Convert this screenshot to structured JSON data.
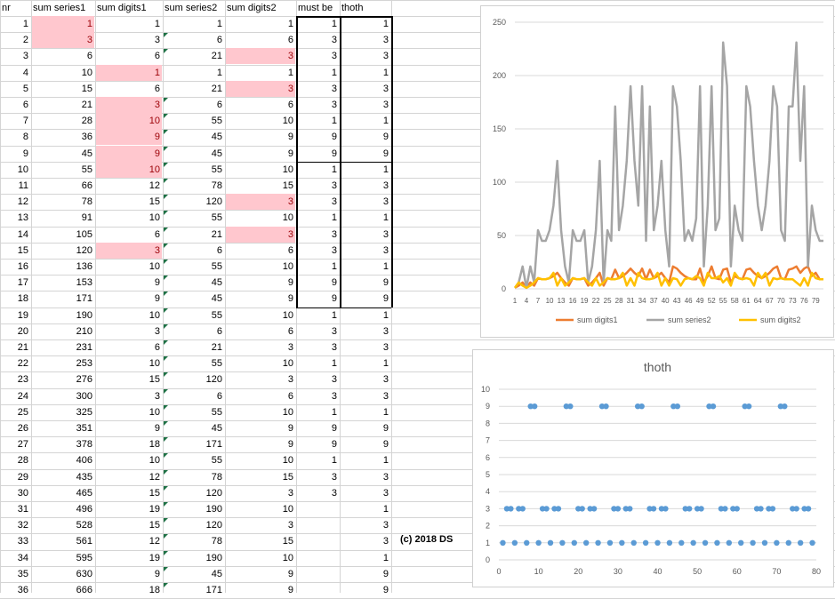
{
  "headers": [
    "nr",
    "sum series1",
    "sum digits1",
    "sum series2",
    "sum digits2",
    "must be",
    "thoth"
  ],
  "rows": [
    [
      1,
      1,
      1,
      1,
      1,
      1,
      1
    ],
    [
      2,
      3,
      3,
      6,
      6,
      3,
      3
    ],
    [
      3,
      6,
      6,
      21,
      3,
      3,
      3
    ],
    [
      4,
      10,
      1,
      1,
      1,
      1,
      1
    ],
    [
      5,
      15,
      6,
      21,
      3,
      3,
      3
    ],
    [
      6,
      21,
      3,
      6,
      6,
      3,
      3
    ],
    [
      7,
      28,
      10,
      55,
      10,
      1,
      1
    ],
    [
      8,
      36,
      9,
      45,
      9,
      9,
      9
    ],
    [
      9,
      45,
      9,
      45,
      9,
      9,
      9
    ],
    [
      10,
      55,
      10,
      55,
      10,
      1,
      1
    ],
    [
      11,
      66,
      12,
      78,
      15,
      3,
      3
    ],
    [
      12,
      78,
      15,
      120,
      3,
      3,
      3
    ],
    [
      13,
      91,
      10,
      55,
      10,
      1,
      1
    ],
    [
      14,
      105,
      6,
      21,
      3,
      3,
      3
    ],
    [
      15,
      120,
      3,
      6,
      6,
      3,
      3
    ],
    [
      16,
      136,
      10,
      55,
      10,
      1,
      1
    ],
    [
      17,
      153,
      9,
      45,
      9,
      9,
      9
    ],
    [
      18,
      171,
      9,
      45,
      9,
      9,
      9
    ],
    [
      19,
      190,
      10,
      55,
      10,
      1,
      1
    ],
    [
      20,
      210,
      3,
      6,
      6,
      3,
      3
    ],
    [
      21,
      231,
      6,
      21,
      3,
      3,
      3
    ],
    [
      22,
      253,
      10,
      55,
      10,
      1,
      1
    ],
    [
      23,
      276,
      15,
      120,
      3,
      3,
      3
    ],
    [
      24,
      300,
      3,
      6,
      6,
      3,
      3
    ],
    [
      25,
      325,
      10,
      55,
      10,
      1,
      1
    ],
    [
      26,
      351,
      9,
      45,
      9,
      9,
      9
    ],
    [
      27,
      378,
      18,
      171,
      9,
      9,
      9
    ],
    [
      28,
      406,
      10,
      55,
      10,
      1,
      1
    ],
    [
      29,
      435,
      12,
      78,
      15,
      3,
      3
    ],
    [
      30,
      465,
      15,
      120,
      3,
      3,
      3
    ],
    [
      31,
      496,
      19,
      190,
      10,
      "",
      1
    ],
    [
      32,
      528,
      15,
      120,
      3,
      "",
      3
    ],
    [
      33,
      561,
      12,
      78,
      15,
      "",
      3
    ],
    [
      34,
      595,
      19,
      190,
      10,
      "",
      1
    ],
    [
      35,
      630,
      9,
      45,
      9,
      "",
      9
    ],
    [
      36,
      666,
      18,
      171,
      9,
      "",
      9
    ]
  ],
  "pink_cells": [
    [
      0,
      1
    ],
    [
      1,
      1
    ],
    [
      3,
      2
    ],
    [
      5,
      2
    ],
    [
      6,
      2
    ],
    [
      7,
      2
    ],
    [
      8,
      2
    ],
    [
      9,
      2
    ],
    [
      14,
      2
    ],
    [
      2,
      4
    ],
    [
      4,
      4
    ],
    [
      11,
      4
    ],
    [
      13,
      4
    ]
  ],
  "triangle_cells": [
    1,
    2,
    5,
    6,
    7,
    8,
    9,
    10,
    11,
    12,
    13,
    14,
    15,
    16,
    17,
    18,
    19,
    20,
    21,
    22,
    23,
    24,
    25,
    26,
    27,
    28,
    29,
    30,
    31,
    32,
    33,
    34,
    35
  ],
  "credit": "(c) 2018 DS",
  "chart_data": [
    {
      "type": "line",
      "title": "",
      "ylim": [
        0,
        250
      ],
      "yticks": [
        0,
        50,
        100,
        150,
        200,
        250
      ],
      "x": [
        1,
        2,
        3,
        4,
        5,
        6,
        7,
        8,
        9,
        10,
        11,
        12,
        13,
        14,
        15,
        16,
        17,
        18,
        19,
        20,
        21,
        22,
        23,
        24,
        25,
        26,
        27,
        28,
        29,
        30,
        31,
        32,
        33,
        34,
        35,
        36,
        37,
        38,
        39,
        40,
        41,
        42,
        43,
        44,
        45,
        46,
        47,
        48,
        49,
        50,
        51,
        52,
        53,
        54,
        55,
        56,
        57,
        58,
        59,
        60,
        61,
        62,
        63,
        64,
        65,
        66,
        67,
        68,
        69,
        70,
        71,
        72,
        73,
        74,
        75,
        76,
        77,
        78,
        79,
        80,
        81
      ],
      "xtick_labels": [
        "1",
        "4",
        "7",
        "10",
        "13",
        "16",
        "19",
        "22",
        "25",
        "28",
        "31",
        "34",
        "37",
        "40",
        "43",
        "46",
        "49",
        "52",
        "55",
        "58",
        "61",
        "64",
        "67",
        "70",
        "73",
        "76",
        "79"
      ],
      "series": [
        {
          "name": "sum digits1",
          "color": "#ed7d31",
          "values": [
            1,
            3,
            6,
            1,
            6,
            3,
            10,
            9,
            9,
            10,
            12,
            15,
            10,
            6,
            3,
            10,
            9,
            9,
            10,
            3,
            6,
            10,
            15,
            3,
            10,
            9,
            18,
            10,
            12,
            15,
            19,
            15,
            12,
            19,
            9,
            18,
            10,
            12,
            15,
            10,
            6,
            21,
            19,
            15,
            12,
            10,
            9,
            9,
            19,
            6,
            12,
            21,
            10,
            9,
            18,
            19,
            6,
            12,
            10,
            9,
            18,
            19,
            15,
            12,
            10,
            12,
            15,
            19,
            21,
            10,
            9,
            18,
            19,
            21,
            15,
            19,
            21,
            12,
            15,
            9,
            9
          ]
        },
        {
          "name": "sum series2",
          "color": "#a5a5a5",
          "values": [
            1,
            6,
            21,
            1,
            21,
            6,
            55,
            45,
            45,
            55,
            78,
            120,
            55,
            21,
            6,
            55,
            45,
            45,
            55,
            6,
            21,
            55,
            120,
            6,
            55,
            45,
            171,
            55,
            78,
            120,
            190,
            120,
            78,
            190,
            45,
            171,
            55,
            78,
            120,
            55,
            21,
            190,
            171,
            120,
            45,
            55,
            45,
            66,
            190,
            21,
            78,
            190,
            55,
            66,
            231,
            190,
            21,
            78,
            55,
            45,
            190,
            171,
            120,
            78,
            55,
            78,
            120,
            190,
            171,
            55,
            45,
            171,
            171,
            231,
            120,
            190,
            21,
            78,
            55,
            45,
            45
          ]
        },
        {
          "name": "sum digits2",
          "color": "#ffc000",
          "values": [
            1,
            6,
            3,
            1,
            3,
            6,
            10,
            9,
            9,
            10,
            15,
            3,
            10,
            3,
            6,
            10,
            9,
            9,
            10,
            6,
            3,
            10,
            3,
            6,
            10,
            9,
            9,
            10,
            15,
            3,
            10,
            3,
            15,
            10,
            9,
            9,
            10,
            15,
            3,
            10,
            3,
            10,
            9,
            3,
            9,
            10,
            9,
            12,
            10,
            3,
            15,
            10,
            10,
            12,
            6,
            10,
            3,
            15,
            10,
            9,
            10,
            9,
            3,
            15,
            10,
            15,
            3,
            10,
            9,
            10,
            9,
            9,
            9,
            6,
            3,
            10,
            3,
            15,
            10,
            9,
            9
          ]
        }
      ],
      "legend": "bottom"
    },
    {
      "type": "scatter",
      "title": "thoth",
      "xlim": [
        0,
        80
      ],
      "ylim": [
        0,
        10
      ],
      "xticks": [
        0,
        10,
        20,
        30,
        40,
        50,
        60,
        70,
        80
      ],
      "yticks": [
        0,
        1,
        2,
        3,
        4,
        5,
        6,
        7,
        8,
        9,
        10
      ],
      "color": "#5b9bd5",
      "values": [
        1,
        3,
        3,
        1,
        3,
        3,
        1,
        9,
        9,
        1,
        3,
        3,
        1,
        3,
        3,
        1,
        9,
        9,
        1,
        3,
        3,
        1,
        3,
        3,
        1,
        9,
        9,
        1,
        3,
        3,
        1,
        3,
        3,
        1,
        9,
        9,
        1,
        3,
        3,
        1,
        3,
        3,
        1,
        9,
        9,
        1,
        3,
        3,
        1,
        3,
        3,
        1,
        9,
        9,
        1,
        3,
        3,
        1,
        3,
        3,
        1,
        9,
        9,
        1,
        3,
        3,
        1,
        3,
        3,
        1,
        9,
        9,
        1,
        3,
        3,
        1,
        3,
        3,
        1
      ]
    }
  ]
}
